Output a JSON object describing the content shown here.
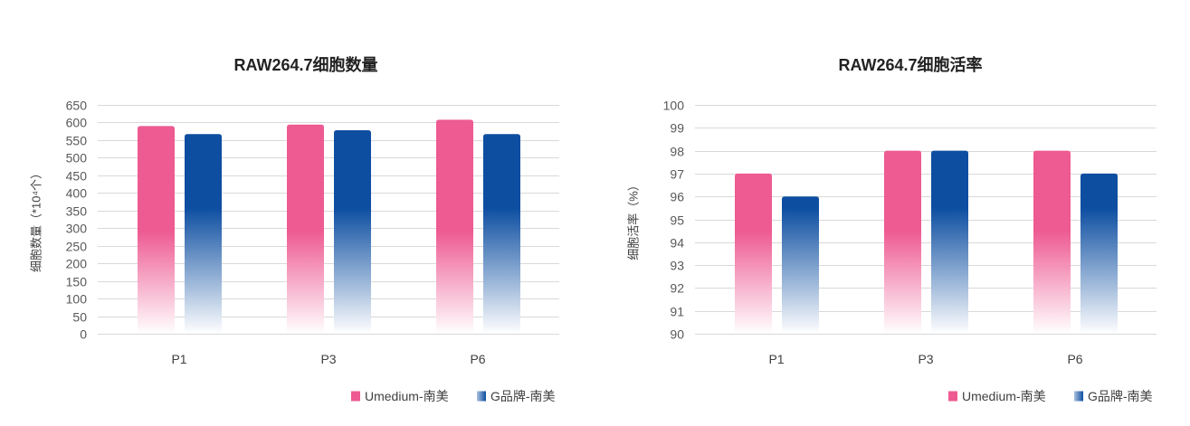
{
  "chart_data": [
    {
      "type": "bar",
      "title": "RAW264.7细胞数量",
      "ylabel": "细胞数量（*10⁴个）",
      "categories": [
        "P1",
        "P3",
        "P6"
      ],
      "series": [
        {
          "name": "Umedium-南美",
          "color": "#EE5A92",
          "values": [
            590,
            594,
            608
          ]
        },
        {
          "name": "G品牌-南美",
          "color": "#0D4EA1",
          "values": [
            567,
            578,
            567
          ]
        }
      ],
      "ylim": [
        0,
        650
      ],
      "yticks": [
        0,
        50,
        100,
        150,
        200,
        250,
        300,
        350,
        400,
        450,
        500,
        550,
        600,
        650
      ],
      "grid": true,
      "legend": "bottom-right"
    },
    {
      "type": "bar",
      "title": "RAW264.7细胞活率",
      "ylabel": "细胞活率（%）",
      "categories": [
        "P1",
        "P3",
        "P6"
      ],
      "series": [
        {
          "name": "Umedium-南美",
          "color": "#EE5A92",
          "values": [
            97,
            98,
            98
          ]
        },
        {
          "name": "G品牌-南美",
          "color": "#0D4EA1",
          "values": [
            96,
            98,
            97
          ]
        }
      ],
      "ylim": [
        90,
        100
      ],
      "yticks": [
        90,
        91,
        92,
        93,
        94,
        95,
        96,
        97,
        98,
        99,
        100
      ],
      "grid": true,
      "legend": "bottom-right"
    }
  ]
}
